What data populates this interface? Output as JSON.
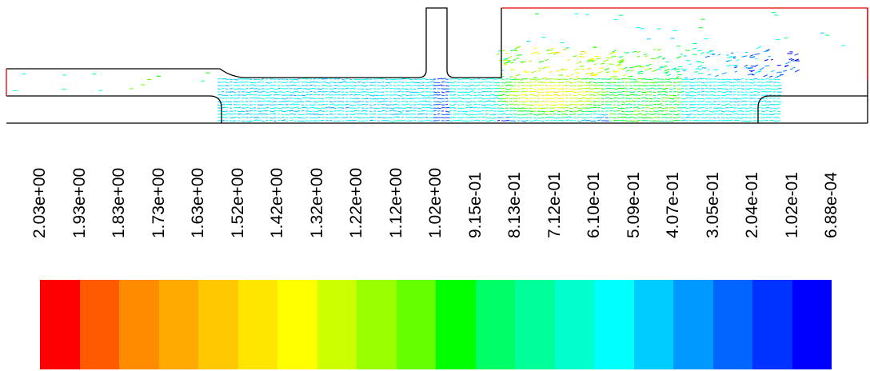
{
  "colorbar": {
    "tick_labels": [
      "2.03e+00",
      "1.93e+00",
      "1.83e+00",
      "1.73e+00",
      "1.63e+00",
      "1.52e+00",
      "1.42e+00",
      "1.32e+00",
      "1.22e+00",
      "1.12e+00",
      "1.02e+00",
      "9.15e-01",
      "8.13e-01",
      "7.12e-01",
      "6.10e-01",
      "5.09e-01",
      "4.07e-01",
      "3.05e-01",
      "2.04e-01",
      "1.02e-01",
      "6.88e-04"
    ],
    "colors": [
      "#ff0000",
      "#ff5a00",
      "#ff8c00",
      "#ffaa00",
      "#ffc800",
      "#ffe600",
      "#ffff00",
      "#ccff00",
      "#99ff00",
      "#66ff00",
      "#00ff00",
      "#00ff66",
      "#00ff99",
      "#00ffcc",
      "#00ffff",
      "#00ccff",
      "#0099ff",
      "#0066ff",
      "#0033ff",
      "#0000ff"
    ]
  },
  "geometry": {
    "outline_color": "#000000",
    "boundary_color": "#e00000"
  }
}
